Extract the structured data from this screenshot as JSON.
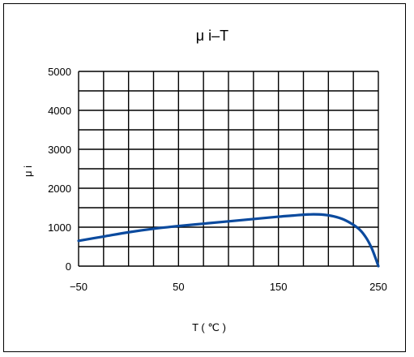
{
  "chart_data": {
    "type": "line",
    "title": "μ i–T",
    "xlabel": "T ( ℃ )",
    "ylabel": "μ i",
    "xlim": [
      -50,
      250
    ],
    "ylim": [
      0,
      5000
    ],
    "x_ticks": [
      "−50",
      "50",
      "150",
      "250"
    ],
    "y_ticks": [
      "0",
      "1000",
      "2000",
      "3000",
      "4000",
      "5000"
    ],
    "x_tick_values": [
      -50,
      50,
      150,
      250
    ],
    "y_tick_values": [
      0,
      1000,
      2000,
      3000,
      4000,
      5000
    ],
    "grid": true,
    "grid_x_step": 25,
    "grid_y_step": 500,
    "line_color": "#0b4a9e",
    "series": [
      {
        "x": [
          -50,
          -25,
          0,
          25,
          50,
          75,
          100,
          125,
          150,
          165,
          175,
          185,
          195,
          205,
          215,
          225,
          232,
          238,
          243,
          247,
          250
        ],
        "values": [
          650,
          760,
          870,
          960,
          1030,
          1090,
          1150,
          1210,
          1270,
          1300,
          1320,
          1330,
          1320,
          1280,
          1200,
          1060,
          920,
          720,
          480,
          220,
          0
        ]
      }
    ]
  }
}
